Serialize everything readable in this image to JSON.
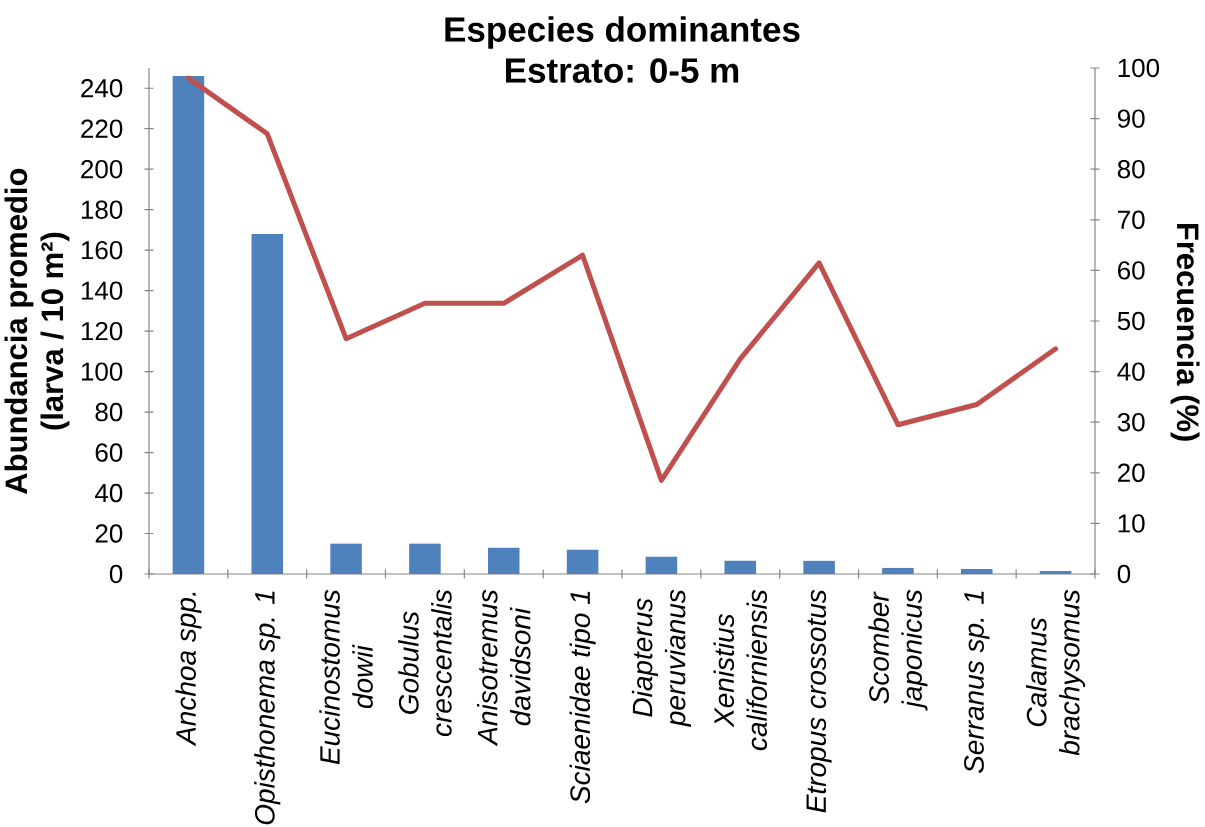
{
  "chart_data": {
    "type": "bar",
    "title": "Especies dominantes",
    "subtitle": "Estrato: 0-5 m",
    "ylabel": "Abundancia promedio (larva / 10 m²)",
    "y2label": "Frecuencia (%)",
    "categories": [
      "Anchoa spp.",
      "Opisthonema sp. 1",
      "Eucinostomus dowii",
      "Gobulus crescentalis",
      "Anisotremus davidsoni",
      "Sciaenidae tipo 1",
      "Diapterus peruvianus",
      "Xenistius californiensis",
      "Etropus crossotus",
      "Scomber japonicus",
      "Serranus sp. 1",
      "Calamus brachysomus"
    ],
    "series": [
      {
        "color": "#4f81bd",
        "values": [
          246,
          168,
          15,
          15,
          13,
          12,
          8.5,
          6.5,
          6.5,
          3,
          2.5,
          1.5
        ]
      },
      {
        "type": "line",
        "axis": "y2",
        "color": "#c0504d",
        "values": [
          98,
          87,
          46.5,
          53.5,
          53.5,
          63,
          18.5,
          42.5,
          61.5,
          29.5,
          33.5,
          44.5
        ]
      }
    ],
    "ylim": [
      0,
      250
    ],
    "yticks": [
      0,
      20,
      40,
      60,
      80,
      100,
      120,
      140,
      160,
      180,
      200,
      220,
      240
    ],
    "y2lim": [
      0,
      100
    ],
    "y2ticks": [
      0,
      10,
      20,
      30,
      40,
      50,
      60,
      70,
      80,
      90,
      100
    ]
  }
}
